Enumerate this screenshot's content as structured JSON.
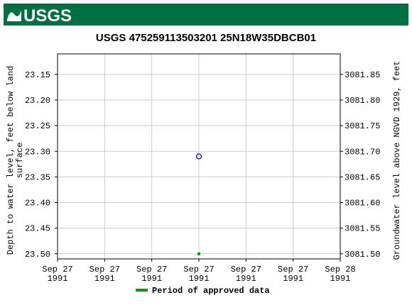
{
  "header": {
    "logo": "USGS"
  },
  "chart_data": {
    "type": "scatter",
    "title": "USGS 475259113503201 25N18W35DBCB01",
    "ylabel": [
      "Depth to water level, feet below land",
      "surface"
    ],
    "y2label": "Groundwater level above NGVD 1929, feet",
    "x": [
      3
    ],
    "xlim": [
      0,
      6
    ],
    "xticks": [
      {
        "value": 0,
        "label": [
          "Sep 27",
          "1991"
        ]
      },
      {
        "value": 1,
        "label": [
          "Sep 27",
          "1991"
        ]
      },
      {
        "value": 2,
        "label": [
          "Sep 27",
          "1991"
        ]
      },
      {
        "value": 3,
        "label": [
          "Sep 27",
          "1991"
        ]
      },
      {
        "value": 4,
        "label": [
          "Sep 27",
          "1991"
        ]
      },
      {
        "value": 5,
        "label": [
          "Sep 27",
          "1991"
        ]
      },
      {
        "value": 6,
        "label": [
          "Sep 28",
          "1991"
        ]
      }
    ],
    "ylim": [
      23.11,
      23.51
    ],
    "y_inverted": true,
    "yticks": [
      23.15,
      {
        "value": 23.2,
        "label": "23.20"
      },
      23.25,
      {
        "value": 23.3,
        "label": "23.30"
      },
      23.35,
      {
        "value": 23.4,
        "label": "23.40"
      },
      23.45,
      {
        "value": 23.5,
        "label": "23.50"
      }
    ],
    "y2lim": [
      3081.49,
      3081.89
    ],
    "y2ticks": [
      3081.85,
      {
        "value": 3081.8,
        "label": "3081.80"
      },
      3081.75,
      {
        "value": 3081.7,
        "label": "3081.70"
      },
      3081.65,
      {
        "value": 3081.6,
        "label": "3081.60"
      },
      3081.55,
      {
        "value": 3081.5,
        "label": "3081.50"
      }
    ],
    "grid": true,
    "series": [
      {
        "color": "#0000ff",
        "marker": "circle",
        "values": [
          23.31
        ]
      },
      {
        "name": "Period of approved data",
        "color": "#00a000",
        "marker": "square",
        "values": [
          23.5
        ]
      }
    ]
  }
}
